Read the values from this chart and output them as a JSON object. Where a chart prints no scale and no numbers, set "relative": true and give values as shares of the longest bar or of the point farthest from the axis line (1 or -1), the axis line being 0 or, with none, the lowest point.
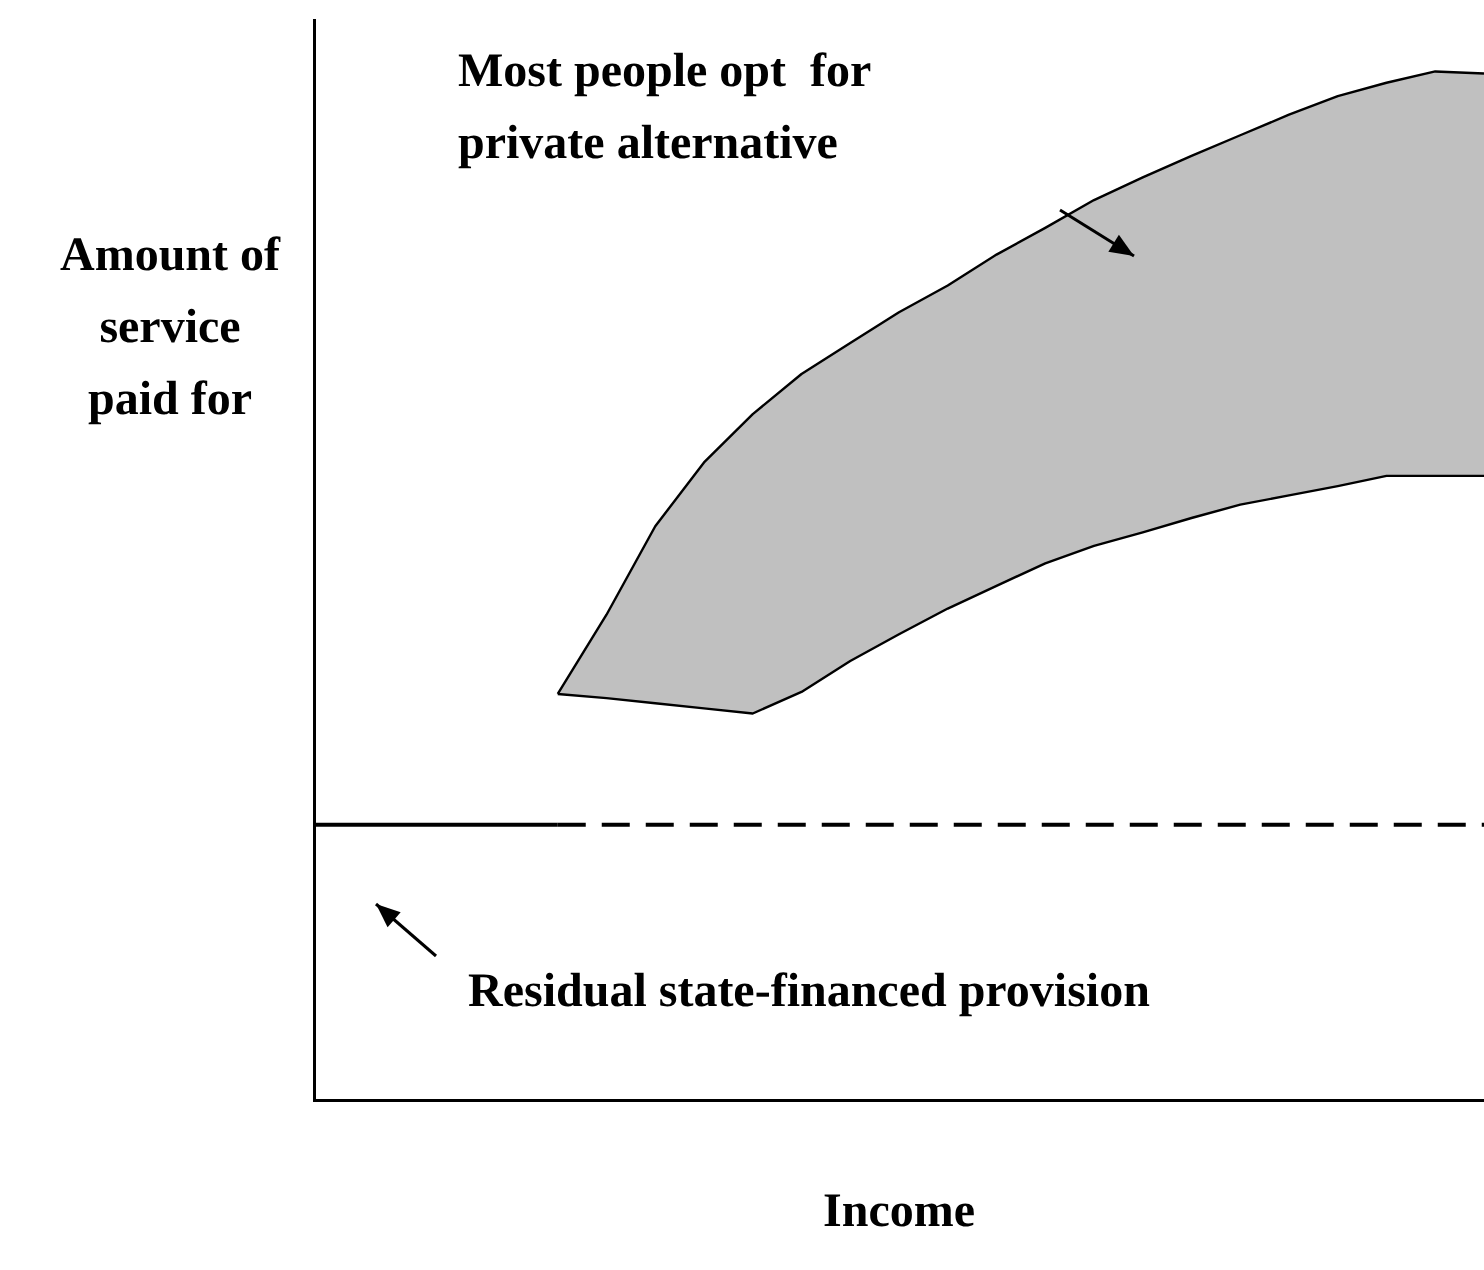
{
  "chart_data": {
    "type": "area",
    "relative": true,
    "xlabel": "Income",
    "ylabel": "Amount of service paid for",
    "annotations": [
      "Most people opt  for private alternative",
      "Residual state-financed provision"
    ],
    "categories": [
      null,
      null,
      null,
      null,
      null,
      null,
      null,
      null,
      null,
      null,
      null,
      null,
      null,
      null,
      null,
      null,
      null,
      null,
      null,
      null,
      null,
      null,
      null,
      null,
      null
    ],
    "series": [
      {
        "type": "line",
        "color": "#000000",
        "line_style": "solid",
        "values": [
          null,
          null,
          null,
          null,
          null,
          0.395,
          0.391,
          0.386,
          0.381,
          0.376,
          0.397,
          0.427,
          0.453,
          0.478,
          0.5,
          0.522,
          0.539,
          0.552,
          0.566,
          0.579,
          0.588,
          0.597,
          0.607,
          0.607,
          0.607
        ]
      },
      {
        "color": "#c0c0c0",
        "values": [
          null,
          null,
          null,
          null,
          null,
          0.395,
          0.472,
          0.558,
          0.62,
          0.667,
          0.706,
          0.736,
          0.766,
          0.792,
          0.822,
          0.848,
          0.875,
          0.897,
          0.918,
          0.938,
          0.958,
          0.976,
          0.989,
          1.0,
          0.998
        ]
      },
      {
        "type": "line",
        "color": "#000000",
        "line_style": "solid",
        "values": [
          0.268,
          0.268,
          0.268,
          0.268,
          0.268,
          0.268,
          null,
          null,
          null,
          null,
          null,
          null,
          null,
          null,
          null,
          null,
          null,
          null,
          null,
          null,
          null,
          null,
          null,
          null,
          null
        ]
      },
      {
        "type": "line",
        "color": "#000000",
        "line_style": "dashed",
        "values": [
          null,
          null,
          null,
          null,
          null,
          0.268,
          0.268,
          0.268,
          0.268,
          0.268,
          0.268,
          0.268,
          0.268,
          0.268,
          0.268,
          0.268,
          0.268,
          0.268,
          0.268,
          0.268,
          0.268,
          0.268,
          0.268,
          0.268,
          0.268
        ]
      }
    ],
    "grid": false,
    "legend": false
  }
}
